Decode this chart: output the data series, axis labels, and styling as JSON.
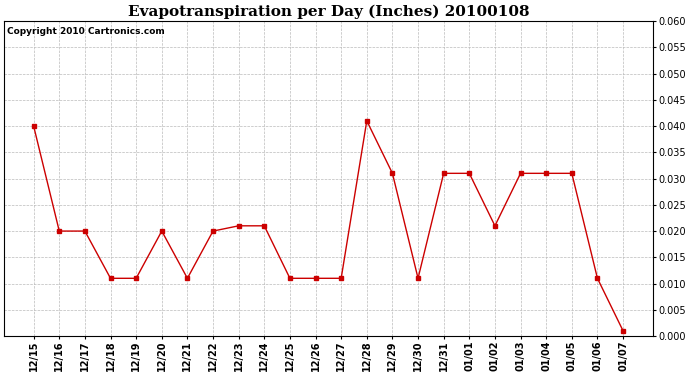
{
  "title": "Evapotranspiration per Day (Inches) 20100108",
  "copyright_text": "Copyright 2010 Cartronics.com",
  "x_labels": [
    "12/15",
    "12/16",
    "12/17",
    "12/18",
    "12/19",
    "12/20",
    "12/21",
    "12/22",
    "12/23",
    "12/24",
    "12/25",
    "12/26",
    "12/27",
    "12/28",
    "12/29",
    "12/30",
    "12/31",
    "01/01",
    "01/02",
    "01/03",
    "01/04",
    "01/05",
    "01/06",
    "01/07"
  ],
  "y_values": [
    0.04,
    0.02,
    0.02,
    0.011,
    0.011,
    0.02,
    0.011,
    0.02,
    0.021,
    0.021,
    0.011,
    0.011,
    0.011,
    0.041,
    0.031,
    0.011,
    0.031,
    0.031,
    0.021,
    0.031,
    0.031,
    0.031,
    0.011,
    0.001
  ],
  "ylim": [
    0.0,
    0.06
  ],
  "yticks": [
    0.0,
    0.005,
    0.01,
    0.015,
    0.02,
    0.025,
    0.03,
    0.035,
    0.04,
    0.045,
    0.05,
    0.055,
    0.06
  ],
  "line_color": "#cc0000",
  "marker": "s",
  "marker_size": 2.5,
  "background_color": "#ffffff",
  "plot_bg_color": "#ffffff",
  "grid_color": "#bbbbbb",
  "title_fontsize": 11,
  "copyright_fontsize": 6.5,
  "tick_fontsize": 7,
  "ylabel_fontsize": 7
}
